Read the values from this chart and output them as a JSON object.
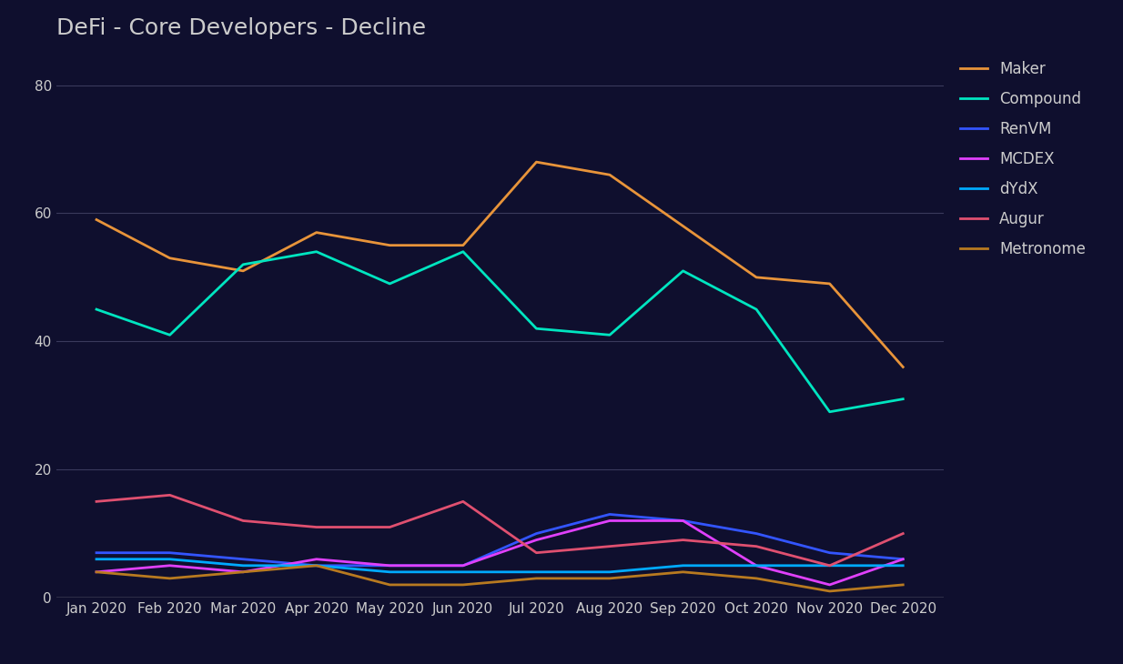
{
  "title": "DeFi - Core Developers - Decline",
  "background_color": "#0f0f2e",
  "plot_bg_color": "#12122a",
  "grid_color": "#3a3a5c",
  "text_color": "#cccccc",
  "x_labels": [
    "Jan 2020",
    "Feb 2020",
    "Mar 2020",
    "Apr 2020",
    "May 2020",
    "Jun 2020",
    "Jul 2020",
    "Aug 2020",
    "Sep 2020",
    "Oct 2020",
    "Nov 2020",
    "Dec 2020"
  ],
  "series": [
    {
      "name": "Maker",
      "color": "#e8943a",
      "data": [
        59,
        53,
        51,
        57,
        55,
        55,
        68,
        66,
        58,
        50,
        49,
        36
      ]
    },
    {
      "name": "Compound",
      "color": "#00e5c0",
      "data": [
        45,
        41,
        52,
        54,
        49,
        54,
        42,
        41,
        51,
        45,
        29,
        31
      ]
    },
    {
      "name": "RenVM",
      "color": "#3355ff",
      "data": [
        7,
        7,
        6,
        5,
        5,
        5,
        10,
        13,
        12,
        10,
        7,
        6
      ]
    },
    {
      "name": "MCDEX",
      "color": "#e040fb",
      "data": [
        4,
        5,
        4,
        6,
        5,
        5,
        9,
        12,
        12,
        5,
        2,
        6
      ]
    },
    {
      "name": "dYdX",
      "color": "#00aaff",
      "data": [
        6,
        6,
        5,
        5,
        4,
        4,
        4,
        4,
        5,
        5,
        5,
        5
      ]
    },
    {
      "name": "Augur",
      "color": "#e05070",
      "data": [
        15,
        16,
        12,
        11,
        11,
        15,
        7,
        8,
        9,
        8,
        5,
        10
      ]
    },
    {
      "name": "Metronome",
      "color": "#b87a20",
      "data": [
        4,
        3,
        4,
        5,
        2,
        2,
        3,
        3,
        4,
        3,
        1,
        2
      ]
    }
  ],
  "ylim": [
    0,
    85
  ],
  "yticks": [
    0,
    20,
    40,
    60,
    80
  ],
  "title_fontsize": 18,
  "tick_fontsize": 11,
  "legend_fontsize": 12
}
